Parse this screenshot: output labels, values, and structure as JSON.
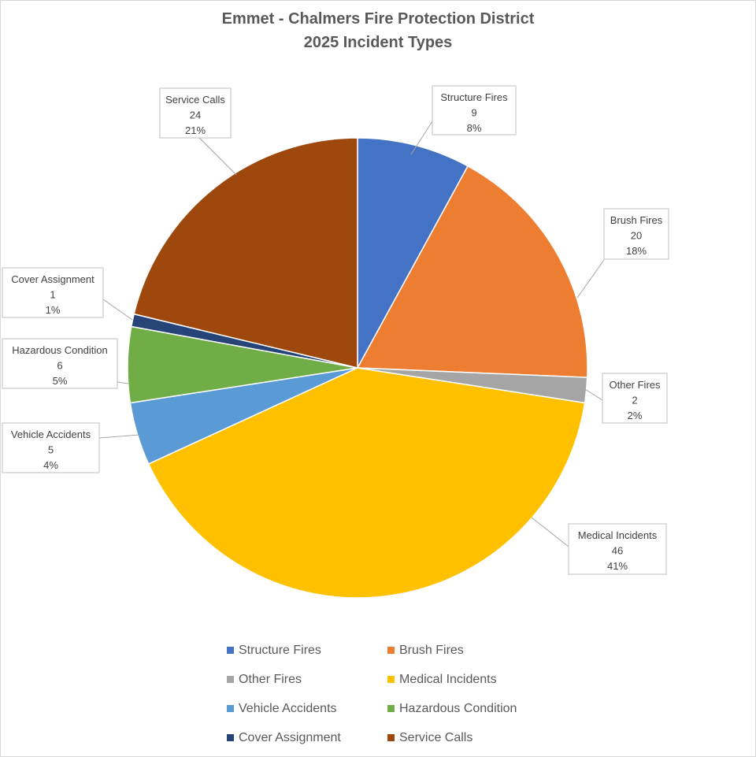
{
  "chart_data": {
    "type": "pie",
    "title": [
      "Emmet - Chalmers Fire Protection District",
      "2025 Incident Types"
    ],
    "slices": [
      {
        "label": "Structure Fires",
        "value": 9,
        "percent": "8%",
        "color": "#4472C4"
      },
      {
        "label": "Brush Fires",
        "value": 20,
        "percent": "18%",
        "color": "#ED7D31"
      },
      {
        "label": "Other Fires",
        "value": 2,
        "percent": "2%",
        "color": "#A5A5A5"
      },
      {
        "label": "Medical Incidents",
        "value": 46,
        "percent": "41%",
        "color": "#FFC000"
      },
      {
        "label": "Vehicle Accidents",
        "value": 5,
        "percent": "4%",
        "color": "#5B9BD5"
      },
      {
        "label": "Hazardous Condition",
        "value": 6,
        "percent": "5%",
        "color": "#70AD47"
      },
      {
        "label": "Cover Assignment",
        "value": 1,
        "percent": "1%",
        "color": "#264478"
      },
      {
        "label": "Service Calls",
        "value": 24,
        "percent": "21%",
        "color": "#9E480E"
      }
    ],
    "legend_position": "bottom",
    "data_labels": "label, value, percent in callout boxes"
  }
}
